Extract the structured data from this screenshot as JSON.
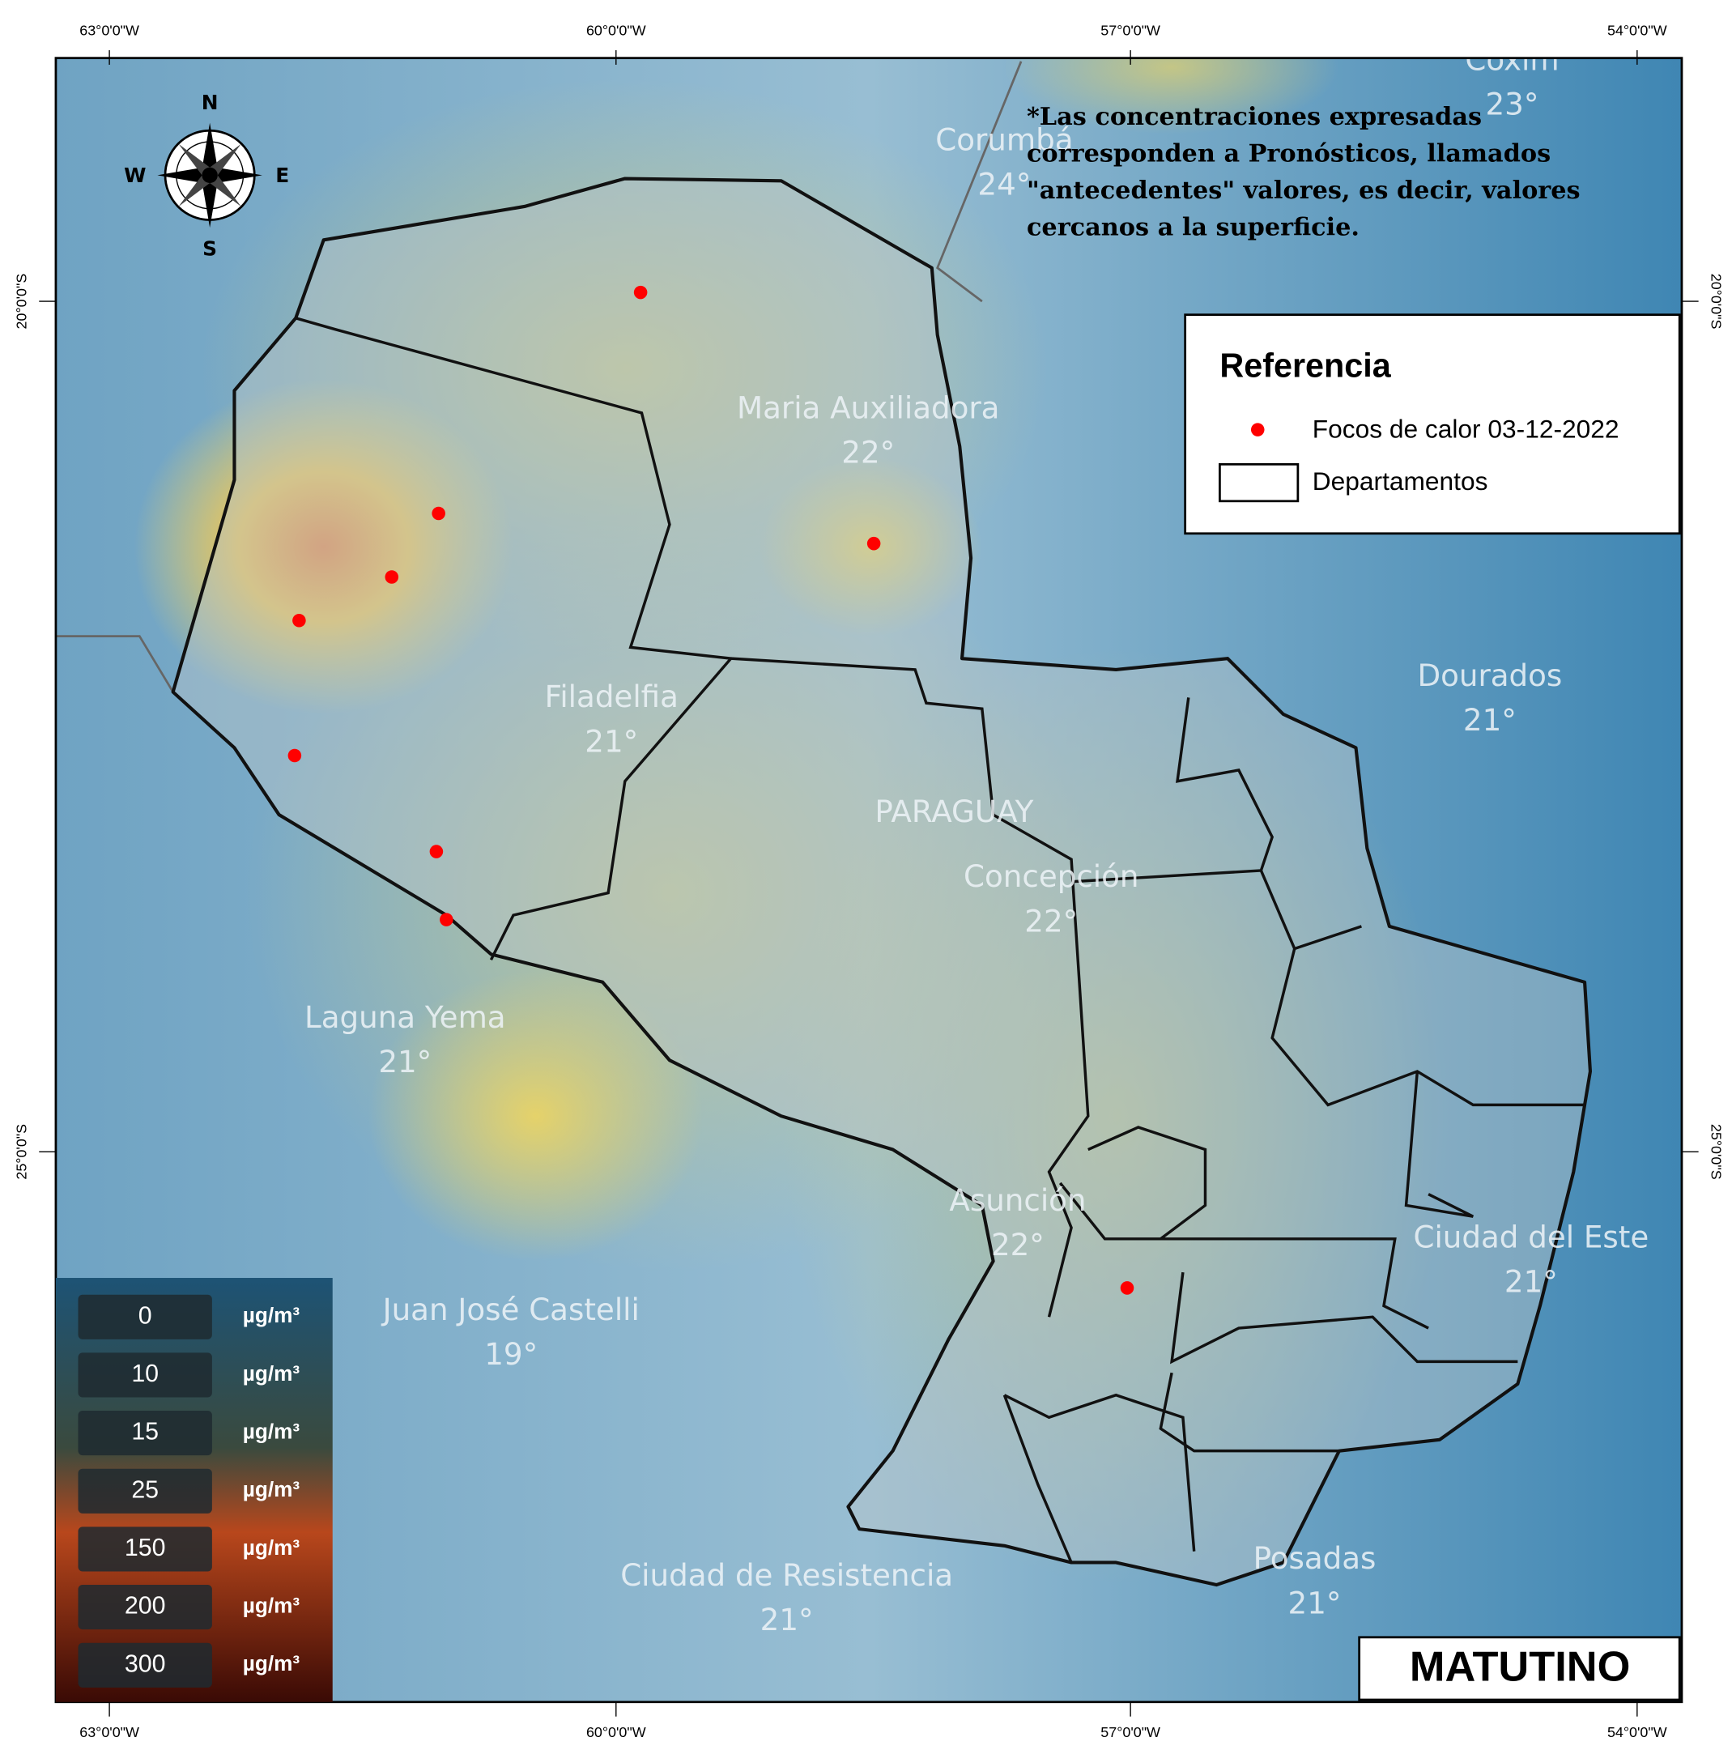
{
  "map": {
    "lon_labels": [
      "63°0'0\"W",
      "60°0'0\"W",
      "57°0'0\"W",
      "54°0'0\"W"
    ],
    "lat_labels": [
      "20°0'0\"S",
      "25°0'0\"S"
    ],
    "note": [
      "*Las concentraciones expresadas",
      "corresponden a Pronósticos, llamados",
      "\"antecedentes\" valores, es decir, valores",
      "cercanos a la superficie."
    ],
    "places": [
      {
        "name": "Coxim",
        "temp": "23°"
      },
      {
        "name": "Corumbá",
        "temp": "24°"
      },
      {
        "name": "Maria Auxiliadora",
        "temp": "22°"
      },
      {
        "name": "Filadelfia",
        "temp": "21°"
      },
      {
        "name": "PARAGUAY"
      },
      {
        "name": "Concepción",
        "temp": "22°"
      },
      {
        "name": "Dourados",
        "temp": "21°"
      },
      {
        "name": "Laguna Yema",
        "temp": "21°"
      },
      {
        "name": "Asunción",
        "temp": "22°"
      },
      {
        "name": "Ciudad del Este",
        "temp": "21°"
      },
      {
        "name": "Juan José Castelli",
        "temp": "19°"
      },
      {
        "name": "Ciudad de Resistencia",
        "temp": "21°"
      },
      {
        "name": "Posadas",
        "temp": "21°"
      }
    ],
    "compass": [
      "N",
      "S",
      "E",
      "W"
    ],
    "legend": {
      "title": "Referencia",
      "items": [
        "Focos de calor 03-12-2022",
        "Departamentos"
      ]
    },
    "scale": {
      "values": [
        0,
        10,
        15,
        25,
        150,
        200,
        300
      ],
      "unit": "µg/m³"
    },
    "period": "MATUTINO"
  }
}
